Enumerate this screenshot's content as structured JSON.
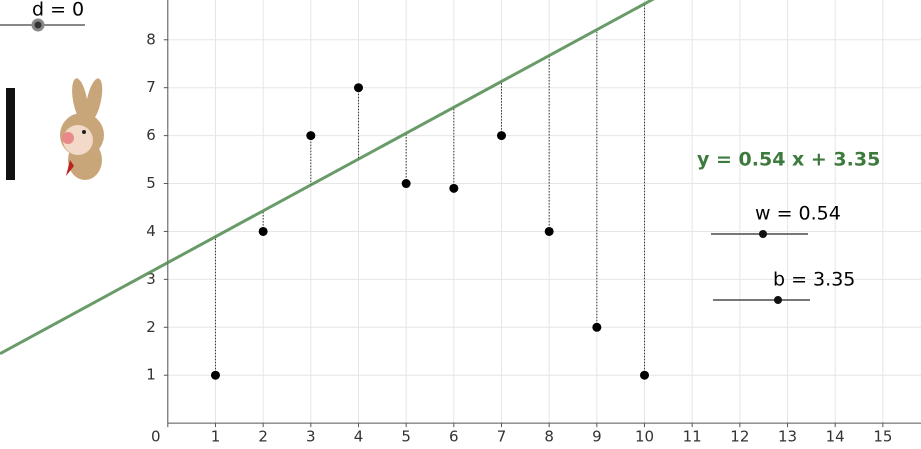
{
  "chart_data": {
    "type": "scatter",
    "x": [
      1,
      2,
      3,
      4,
      5,
      6,
      7,
      8,
      9,
      10
    ],
    "series": [
      {
        "color": "#000000",
        "values": [
          1,
          4,
          6,
          7,
          5,
          4.9,
          6,
          4,
          2,
          1
        ]
      }
    ],
    "line": {
      "label": "y = 0.54 x + 3.35",
      "slope": 0.54,
      "intercept": 3.35,
      "color": "#4f8a4f"
    },
    "xlim": [
      -3.52,
      15.8
    ],
    "ylim": [
      -0.54,
      8.83
    ],
    "xticks": [
      0,
      1,
      2,
      3,
      4,
      5,
      6,
      7,
      8,
      9,
      10,
      11,
      12,
      13,
      14,
      15
    ],
    "yticks": [
      1,
      2,
      3,
      4,
      5,
      6,
      7,
      8
    ],
    "grid": true,
    "sliders": {
      "d": "d = 0",
      "w": "w = 0.54",
      "b": "b = 3.35"
    }
  }
}
